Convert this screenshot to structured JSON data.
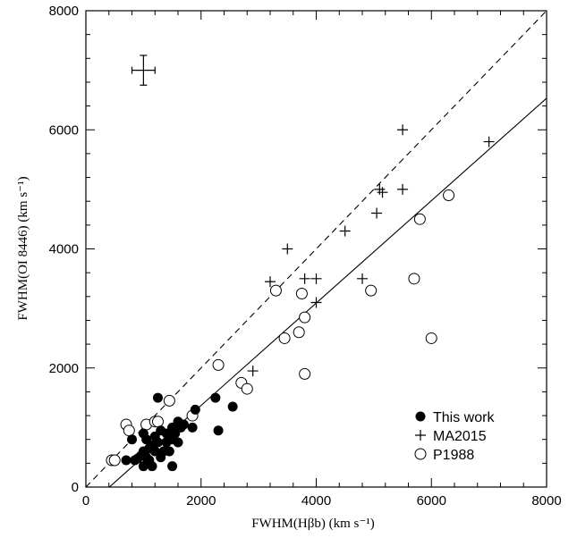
{
  "chart_data": {
    "type": "scatter",
    "xlabel": "FWHM(Hβb)   (km s⁻¹)",
    "ylabel": "FWHM(OI 8446)   (km s⁻¹)",
    "xlim": [
      0,
      8000
    ],
    "ylim": [
      0,
      8000
    ],
    "x_ticks": [
      0,
      2000,
      4000,
      6000,
      8000
    ],
    "y_ticks": [
      0,
      2000,
      4000,
      6000,
      8000
    ],
    "x_tick_labels": [
      "0",
      "2000",
      "4000",
      "6000",
      "8000"
    ],
    "y_tick_labels": [
      "0",
      "2000",
      "4000",
      "6000",
      "8000"
    ],
    "grid": false,
    "legend_position": "bottom-right",
    "reference_lines": [
      {
        "style": "dashed",
        "slope": 1.0,
        "intercept": 0
      },
      {
        "style": "solid",
        "slope": 0.86,
        "intercept": -350
      }
    ],
    "error_bar_example": {
      "x": 1000,
      "y": 7000,
      "xerr": 200,
      "yerr": 250
    },
    "series": [
      {
        "name": "This work",
        "marker": "filled-circle",
        "points": [
          [
            700,
            450
          ],
          [
            800,
            800
          ],
          [
            850,
            450
          ],
          [
            900,
            480
          ],
          [
            950,
            520
          ],
          [
            1000,
            350
          ],
          [
            1000,
            600
          ],
          [
            1000,
            900
          ],
          [
            1050,
            500
          ],
          [
            1050,
            800
          ],
          [
            1100,
            650
          ],
          [
            1100,
            450
          ],
          [
            1150,
            350
          ],
          [
            1150,
            700
          ],
          [
            1200,
            850
          ],
          [
            1200,
            600
          ],
          [
            1250,
            1500
          ],
          [
            1250,
            750
          ],
          [
            1300,
            500
          ],
          [
            1300,
            950
          ],
          [
            1350,
            600
          ],
          [
            1400,
            900
          ],
          [
            1400,
            750
          ],
          [
            1450,
            600
          ],
          [
            1500,
            1000
          ],
          [
            1500,
            800
          ],
          [
            1500,
            350
          ],
          [
            1550,
            900
          ],
          [
            1600,
            750
          ],
          [
            1600,
            1100
          ],
          [
            1650,
            1000
          ],
          [
            1700,
            1050
          ],
          [
            1850,
            1000
          ],
          [
            1900,
            1300
          ],
          [
            2250,
            1500
          ],
          [
            2300,
            950
          ],
          [
            2550,
            1350
          ]
        ]
      },
      {
        "name": "MA2015",
        "marker": "plus",
        "points": [
          [
            2900,
            1950
          ],
          [
            3200,
            3450
          ],
          [
            3500,
            4000
          ],
          [
            3800,
            3500
          ],
          [
            4000,
            3500
          ],
          [
            4000,
            3100
          ],
          [
            4500,
            4300
          ],
          [
            4800,
            3500
          ],
          [
            5050,
            4600
          ],
          [
            5100,
            5000
          ],
          [
            5150,
            4950
          ],
          [
            5500,
            6000
          ],
          [
            5500,
            5000
          ],
          [
            7000,
            5800
          ]
        ]
      },
      {
        "name": "P1988",
        "marker": "open-circle",
        "points": [
          [
            450,
            450
          ],
          [
            500,
            450
          ],
          [
            700,
            1050
          ],
          [
            750,
            950
          ],
          [
            1050,
            1050
          ],
          [
            1200,
            1100
          ],
          [
            1250,
            1100
          ],
          [
            1450,
            1450
          ],
          [
            1850,
            1200
          ],
          [
            2300,
            2050
          ],
          [
            2700,
            1750
          ],
          [
            2800,
            1650
          ],
          [
            3300,
            3300
          ],
          [
            3450,
            2500
          ],
          [
            3700,
            2600
          ],
          [
            3750,
            3250
          ],
          [
            3800,
            2850
          ],
          [
            3800,
            1900
          ],
          [
            4950,
            3300
          ],
          [
            5700,
            3500
          ],
          [
            5800,
            4500
          ],
          [
            6000,
            2500
          ],
          [
            6300,
            4900
          ]
        ]
      }
    ]
  }
}
